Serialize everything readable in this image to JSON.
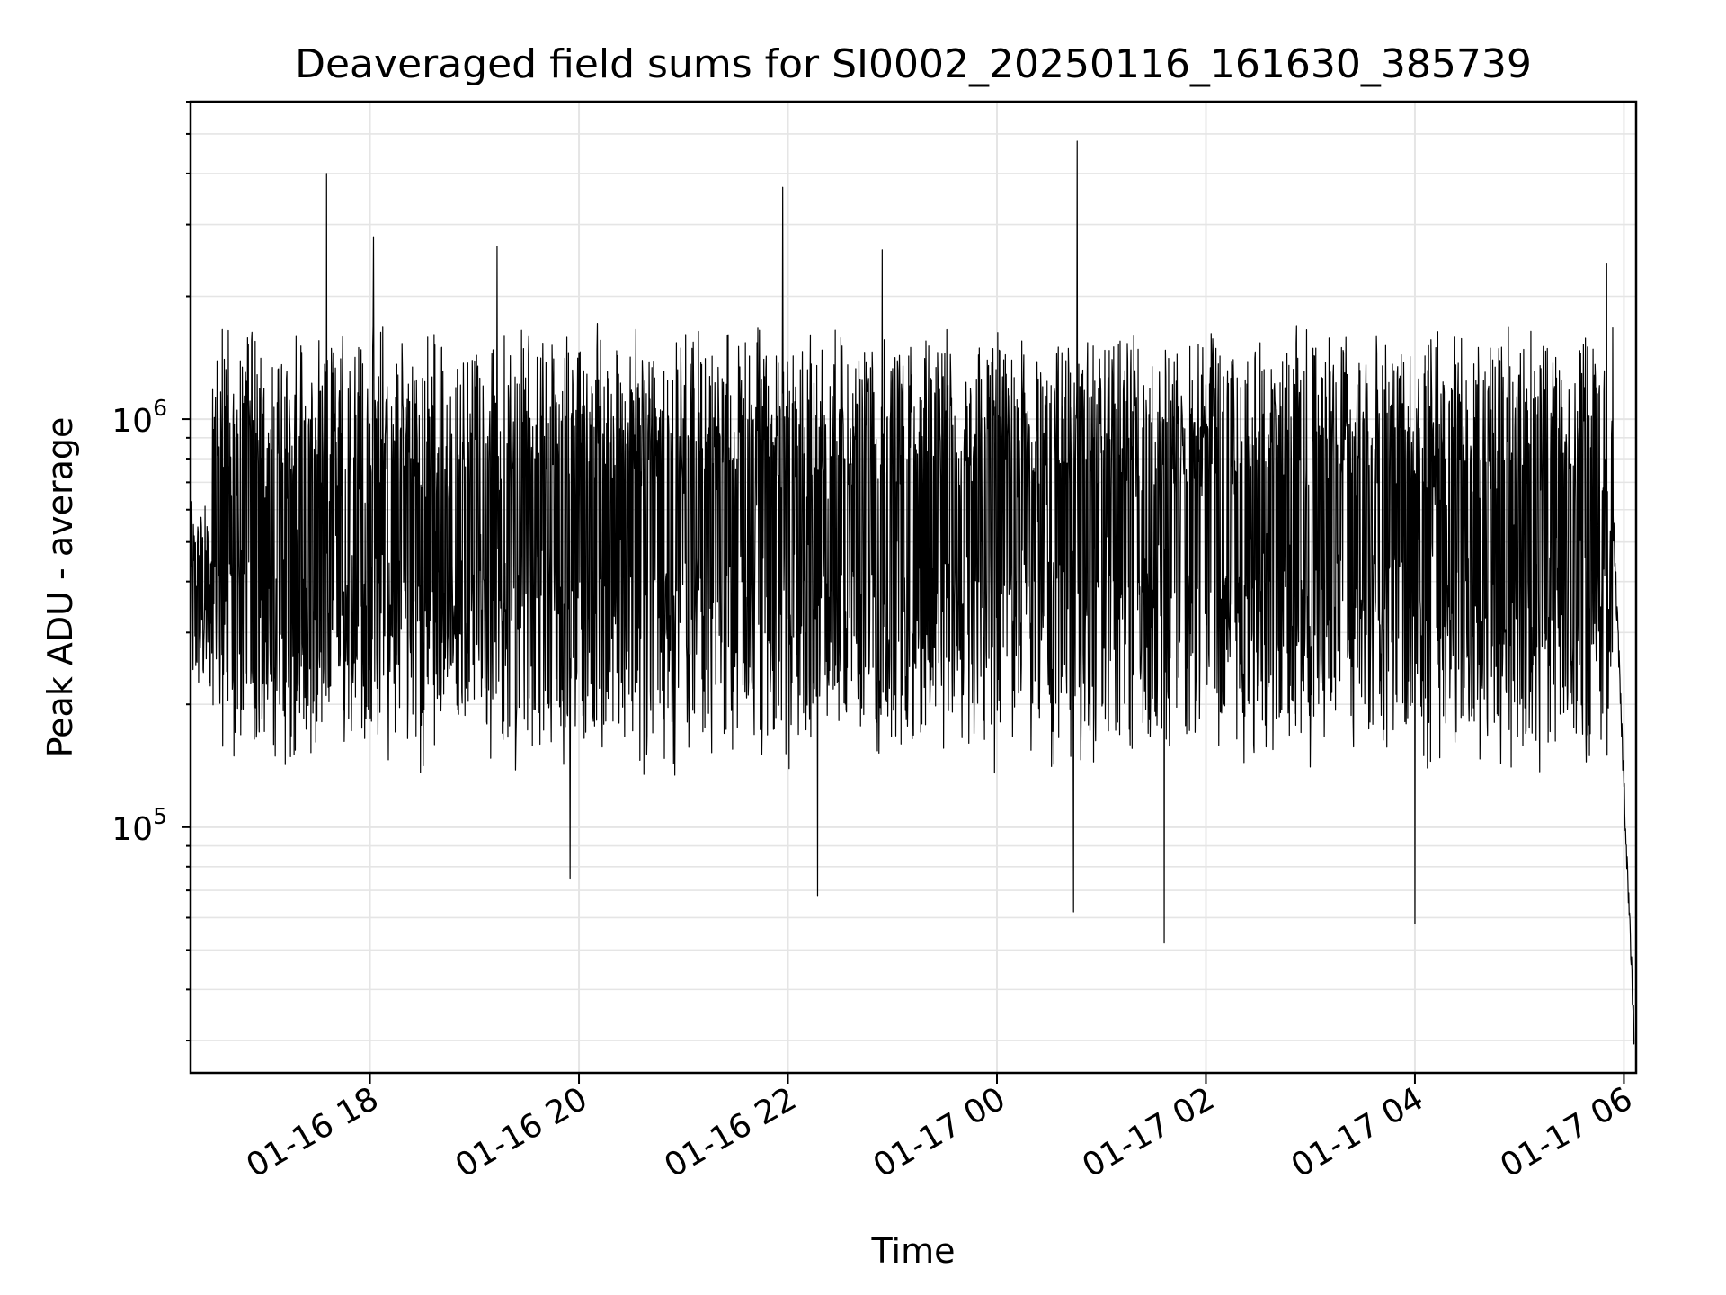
{
  "chart_data": {
    "type": "line",
    "title": "Deaveraged field sums for SI0002_20250116_161630_385739",
    "xlabel": "Time",
    "ylabel": "Peak ADU - average",
    "y_scale": "log",
    "xlim": [
      "2025-01-16 16:17",
      "2025-01-17 06:07"
    ],
    "ylim": [
      25000,
      6000000
    ],
    "x_ticks": [
      "01-16 18",
      "01-16 20",
      "01-16 22",
      "01-17 00",
      "01-17 02",
      "01-17 04",
      "01-17 06"
    ],
    "y_ticks": [
      {
        "base": "10",
        "exp": "5",
        "value": 100000
      },
      {
        "base": "10",
        "exp": "6",
        "value": 1000000
      }
    ],
    "grid": true,
    "line_color": "#000000",
    "grid_color": "#e5e5e5",
    "series": [
      {
        "x_range": [
          "2025-01-16 16:17",
          "2025-01-17 06:06"
        ],
        "typical_upper": 1500000,
        "typical_lower": 150000,
        "spikes": [
          {
            "x": "2025-01-16 17:35",
            "y": 4000000
          },
          {
            "x": "2025-01-16 18:02",
            "y": 2800000
          },
          {
            "x": "2025-01-16 19:13",
            "y": 2650000
          },
          {
            "x": "2025-01-16 21:57",
            "y": 3700000
          },
          {
            "x": "2025-01-16 22:54",
            "y": 2600000
          },
          {
            "x": "2025-01-17 00:46",
            "y": 4800000
          },
          {
            "x": "2025-01-17 05:50",
            "y": 2400000
          },
          {
            "x": "2025-01-16 19:55",
            "y": 75000
          },
          {
            "x": "2025-01-16 22:17",
            "y": 68000
          },
          {
            "x": "2025-01-17 00:44",
            "y": 62000
          },
          {
            "x": "2025-01-17 01:36",
            "y": 52000
          },
          {
            "x": "2025-01-17 04:00",
            "y": 58000
          }
        ],
        "end_value": {
          "x": "2025-01-17 06:06",
          "y": 30000
        }
      }
    ]
  }
}
